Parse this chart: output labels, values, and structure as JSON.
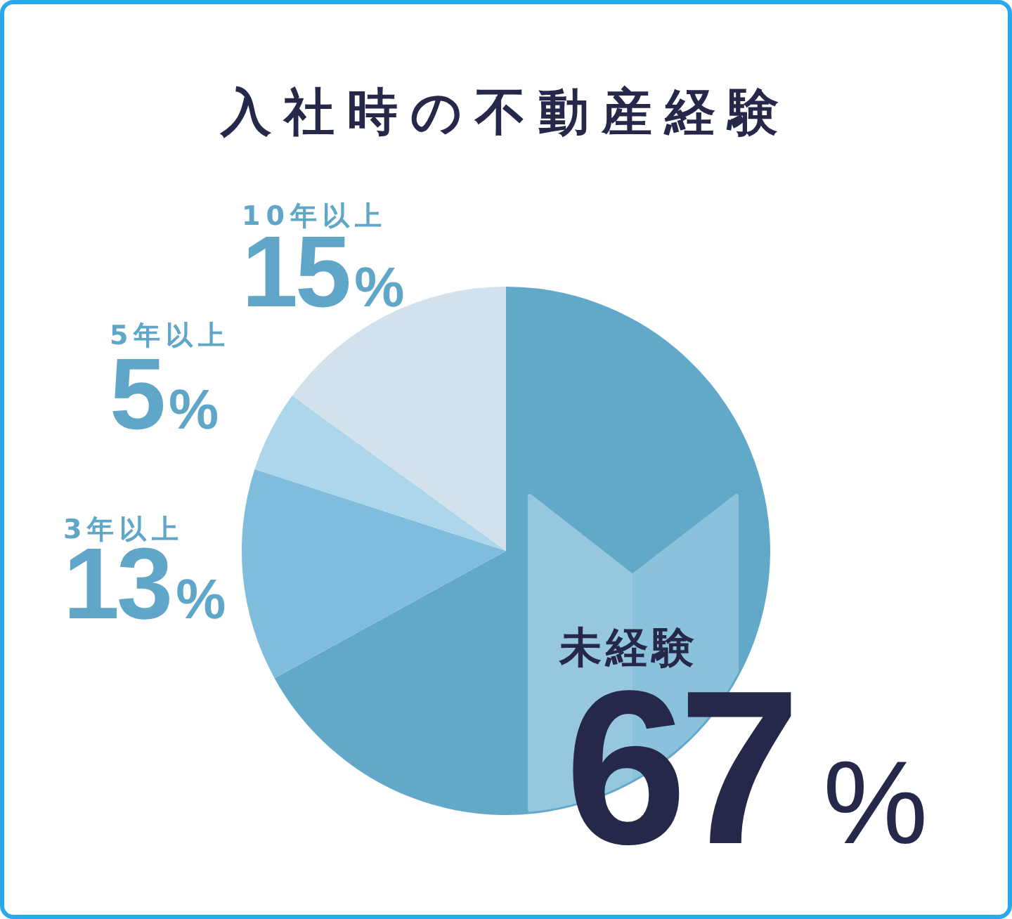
{
  "chart_data": {
    "type": "pie",
    "title": "入社時の不動産経験",
    "categories": [
      "未経験",
      "3年以上",
      "5年以上",
      "10年以上"
    ],
    "values": [
      67,
      13,
      5,
      15
    ],
    "colors": [
      "#62a9c9",
      "#80bcdb",
      "#acd7ea",
      "#d2e1eb"
    ],
    "value_labels": [
      "67%",
      "13%",
      "5%",
      "15%"
    ]
  }
}
